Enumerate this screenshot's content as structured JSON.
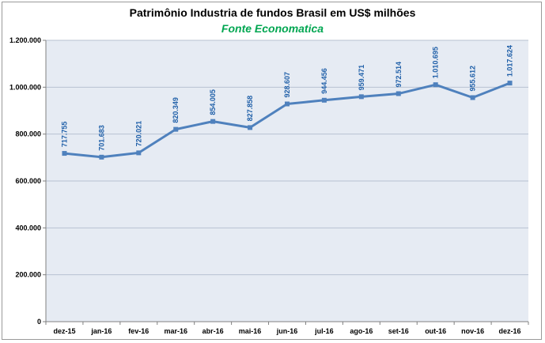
{
  "chart_data": {
    "type": "line",
    "title": "Patrimônio Industria de fundos Brasil em US$ milhões",
    "subtitle": "Fonte Economatica",
    "categories": [
      "dez-15",
      "jan-16",
      "fev-16",
      "mar-16",
      "abr-16",
      "mai-16",
      "jun-16",
      "jul-16",
      "ago-16",
      "set-16",
      "out-16",
      "nov-16",
      "dez-16"
    ],
    "series": [
      {
        "values": [
          717755,
          701683,
          720021,
          820349,
          854005,
          827858,
          928607,
          944456,
          959471,
          972514,
          1010695,
          955612,
          1017624
        ],
        "labels": [
          "717.755",
          "701.683",
          "720.021",
          "820.349",
          "854.005",
          "827.858",
          "928.607",
          "944.456",
          "959.471",
          "972.514",
          "1.010.695",
          "955.612",
          "1.017.624"
        ]
      }
    ],
    "ylim": [
      0,
      1200000
    ],
    "yticks": [
      0,
      200000,
      400000,
      600000,
      800000,
      1000000,
      1200000
    ],
    "ytick_labels": [
      "0",
      "200.000",
      "400.000",
      "600.000",
      "800.000",
      "1.000.000",
      "1.200.000"
    ],
    "xlabel": "",
    "ylabel": "",
    "grid": true,
    "legend": "none",
    "colors": {
      "line": "#4f81bd",
      "marker": "#4f81bd",
      "data_label": "#1f5fa8",
      "subtitle": "#00a651",
      "plot_background": "#e6ebf3",
      "gridline": "#b8c2d2"
    }
  }
}
